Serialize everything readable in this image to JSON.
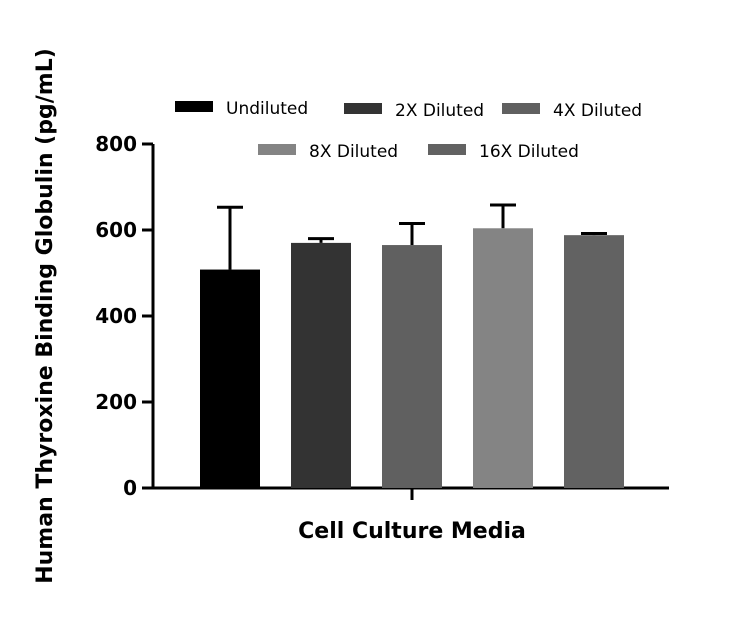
{
  "chart_data": {
    "type": "bar",
    "xlabel": "Cell Culture Media",
    "ylabel": "Human Thyroxine Binding Globulin (pg/mL)",
    "ylim": [
      0,
      800
    ],
    "yticks": [
      0,
      200,
      400,
      600,
      800
    ],
    "legend_position": "top",
    "series": [
      {
        "name": "Undiluted",
        "value": 508,
        "error": 145,
        "color": "#000000"
      },
      {
        "name": "2X Diluted",
        "value": 570,
        "error": 10,
        "color": "#333333"
      },
      {
        "name": "4X Diluted",
        "value": 565,
        "error": 50,
        "color": "#606060"
      },
      {
        "name": "8X Diluted",
        "value": 604,
        "error": 54,
        "color": "#848484"
      },
      {
        "name": "16X Diluted",
        "value": 588,
        "error": 4,
        "color": "#626262"
      }
    ]
  }
}
